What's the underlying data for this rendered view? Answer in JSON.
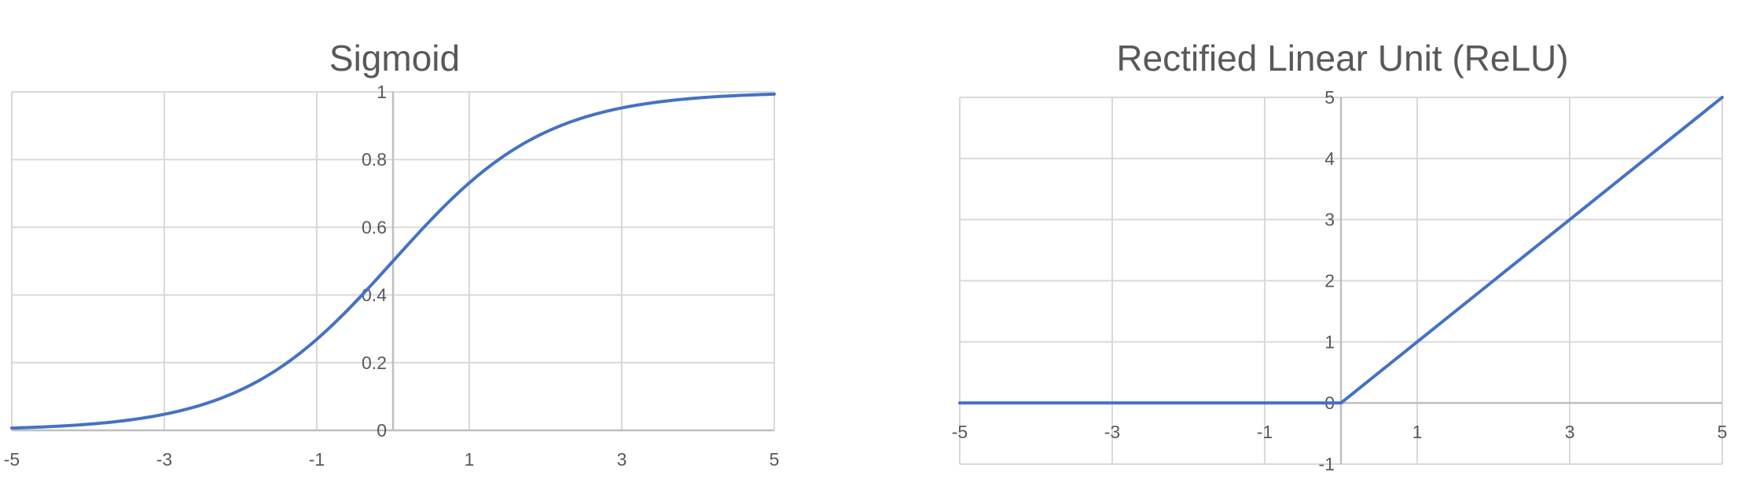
{
  "colors": {
    "series": "#4472C4",
    "grid": "#D9D9D9",
    "axis": "#BFBFBF",
    "text": "#595959"
  },
  "chart_data": [
    {
      "type": "line",
      "title": "Sigmoid",
      "xlabel": "",
      "ylabel": "",
      "xlim": [
        -5,
        5
      ],
      "ylim": [
        0,
        1
      ],
      "grid": true,
      "x_ticks": [
        -5,
        -3,
        -1,
        1,
        3,
        5
      ],
      "y_ticks": [
        0,
        0.2,
        0.4,
        0.6,
        0.8,
        1
      ],
      "x_tick_labels": [
        "-5",
        "-3",
        "-1",
        "1",
        "3",
        "5"
      ],
      "y_tick_labels": [
        "0",
        "0.2",
        "0.4",
        "0.6",
        "0.8",
        "1"
      ],
      "series": [
        {
          "x": [
            -5,
            -4.5,
            -4,
            -3.5,
            -3,
            -2.5,
            -2,
            -1.5,
            -1,
            -0.5,
            0,
            0.5,
            1,
            1.5,
            2,
            2.5,
            3,
            3.5,
            4,
            4.5,
            5
          ],
          "values": [
            0.0067,
            0.011,
            0.018,
            0.029,
            0.047,
            0.076,
            0.119,
            0.182,
            0.269,
            0.378,
            0.5,
            0.622,
            0.731,
            0.818,
            0.881,
            0.924,
            0.953,
            0.971,
            0.982,
            0.989,
            0.9933
          ]
        }
      ]
    },
    {
      "type": "line",
      "title": "Rectified Linear Unit (ReLU)",
      "xlabel": "",
      "ylabel": "",
      "xlim": [
        -5,
        5
      ],
      "ylim": [
        -1,
        5
      ],
      "grid": true,
      "x_ticks": [
        -5,
        -3,
        -1,
        1,
        3,
        5
      ],
      "y_ticks": [
        -1,
        0,
        1,
        2,
        3,
        4,
        5
      ],
      "x_tick_labels": [
        "-5",
        "-3",
        "-1",
        "1",
        "3",
        "5"
      ],
      "y_tick_labels": [
        "-1",
        "0",
        "1",
        "2",
        "3",
        "4",
        "5"
      ],
      "series": [
        {
          "x": [
            -5,
            -4,
            -3,
            -2,
            -1,
            0,
            1,
            2,
            3,
            4,
            5
          ],
          "values": [
            0,
            0,
            0,
            0,
            0,
            0,
            1,
            2,
            3,
            4,
            5
          ]
        }
      ]
    }
  ]
}
